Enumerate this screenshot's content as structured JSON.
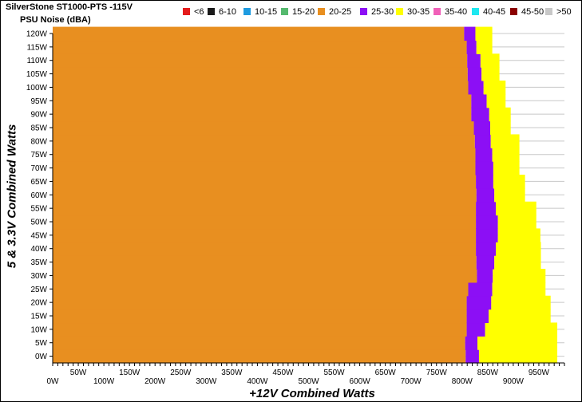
{
  "chart_data": {
    "type": "heatmap",
    "title": "SilverStone ST1000-PTS -115V",
    "subtitle": "PSU Noise (dBA)",
    "xlabel": "+12V Combined Watts",
    "ylabel": "5 & 3.3V Combined Watts",
    "x_ticks": [
      "0W",
      "50W",
      "100W",
      "150W",
      "200W",
      "250W",
      "300W",
      "350W",
      "400W",
      "450W",
      "500W",
      "550W",
      "600W",
      "650W",
      "700W",
      "750W",
      "800W",
      "850W",
      "900W",
      "950W"
    ],
    "y_ticks": [
      "0W",
      "5W",
      "10W",
      "15W",
      "20W",
      "25W",
      "30W",
      "35W",
      "40W",
      "45W",
      "50W",
      "55W",
      "60W",
      "65W",
      "70W",
      "75W",
      "80W",
      "85W",
      "90W",
      "95W",
      "100W",
      "105W",
      "110W",
      "115W",
      "120W"
    ],
    "xlim": [
      0,
      1000
    ],
    "ylim": [
      0,
      120
    ],
    "grid": true,
    "legend_position": "top",
    "legend": [
      {
        "label": "<6",
        "color": "#e41c1c"
      },
      {
        "label": "6-10",
        "color": "#1a1a1a"
      },
      {
        "label": "10-15",
        "color": "#1e9be0"
      },
      {
        "label": "15-20",
        "color": "#55b96e"
      },
      {
        "label": "20-25",
        "color": "#e88f20"
      },
      {
        "label": "25-30",
        "color": "#8c0ff5"
      },
      {
        "label": "30-35",
        "color": "#ffff00"
      },
      {
        "label": "35-40",
        "color": "#f060b8"
      },
      {
        "label": "40-45",
        "color": "#1ee8f0"
      },
      {
        "label": "45-50",
        "color": "#8b0000"
      },
      {
        "label": ">50",
        "color": "#c8c8c8"
      }
    ],
    "zone_boundaries": {
      "description_units": "watts on +12V axis; each row is a 5W step on the 5&3.3V axis",
      "rows": [
        {
          "y": 0,
          "b20_25": 807,
          "b25_30": 833,
          "b30_35": 986
        },
        {
          "y": 5,
          "b20_25": 806,
          "b25_30": 830,
          "b30_35": 986
        },
        {
          "y": 10,
          "b20_25": 809,
          "b25_30": 845,
          "b30_35": 986
        },
        {
          "y": 15,
          "b20_25": 809,
          "b25_30": 852,
          "b30_35": 973
        },
        {
          "y": 20,
          "b20_25": 809,
          "b25_30": 857,
          "b30_35": 973
        },
        {
          "y": 25,
          "b20_25": 812,
          "b25_30": 859,
          "b30_35": 963
        },
        {
          "y": 30,
          "b20_25": 829,
          "b25_30": 860,
          "b30_35": 963
        },
        {
          "y": 35,
          "b20_25": 828,
          "b25_30": 863,
          "b30_35": 954
        },
        {
          "y": 40,
          "b20_25": 827,
          "b25_30": 866,
          "b30_35": 954
        },
        {
          "y": 45,
          "b20_25": 827,
          "b25_30": 870,
          "b30_35": 953
        },
        {
          "y": 50,
          "b20_25": 827,
          "b25_30": 870,
          "b30_35": 945
        },
        {
          "y": 55,
          "b20_25": 827,
          "b25_30": 866,
          "b30_35": 945
        },
        {
          "y": 60,
          "b20_25": 828,
          "b25_30": 863,
          "b30_35": 923
        },
        {
          "y": 65,
          "b20_25": 827,
          "b25_30": 861,
          "b30_35": 923
        },
        {
          "y": 70,
          "b20_25": 826,
          "b25_30": 861,
          "b30_35": 912
        },
        {
          "y": 75,
          "b20_25": 826,
          "b25_30": 859,
          "b30_35": 912
        },
        {
          "y": 80,
          "b20_25": 825,
          "b25_30": 856,
          "b30_35": 912
        },
        {
          "y": 85,
          "b20_25": 823,
          "b25_30": 855,
          "b30_35": 895
        },
        {
          "y": 90,
          "b20_25": 818,
          "b25_30": 853,
          "b30_35": 895
        },
        {
          "y": 95,
          "b20_25": 818,
          "b25_30": 848,
          "b30_35": 885
        },
        {
          "y": 100,
          "b20_25": 812,
          "b25_30": 842,
          "b30_35": 885
        },
        {
          "y": 105,
          "b20_25": 811,
          "b25_30": 838,
          "b30_35": 873
        },
        {
          "y": 110,
          "b20_25": 810,
          "b25_30": 836,
          "b30_35": 873
        },
        {
          "y": 115,
          "b20_25": 809,
          "b25_30": 828,
          "b30_35": 859
        },
        {
          "y": 120,
          "b20_25": 804,
          "b25_30": 826,
          "b30_35": 859
        }
      ]
    }
  }
}
